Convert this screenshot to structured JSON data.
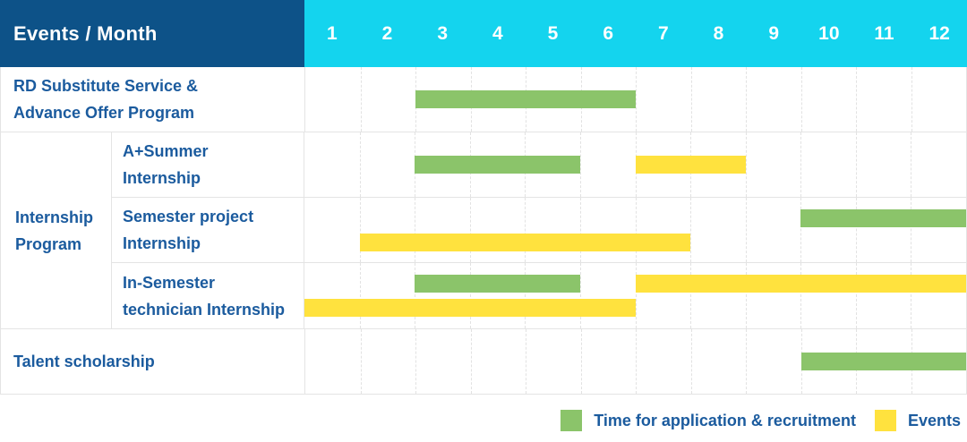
{
  "colors": {
    "header_bg": "#0D5288",
    "months_bg": "#14D4EE",
    "text_blue": "#1B5B9E",
    "green": "#8BC46A",
    "yellow": "#FFE23E",
    "grid_line": "#E4E4E4"
  },
  "header": {
    "title": "Events / Month",
    "months": [
      "1",
      "2",
      "3",
      "4",
      "5",
      "6",
      "7",
      "8",
      "9",
      "10",
      "11",
      "12"
    ]
  },
  "rows": [
    {
      "id": "rd-substitute",
      "label_lines": [
        "RD Substitute Service &",
        "Advance Offer Program"
      ],
      "bars": [
        {
          "color": "green",
          "start": 3,
          "end": 6,
          "line": "center"
        }
      ]
    },
    {
      "id": "a-summer-internship",
      "label_lines": [
        "A+Summer",
        "Internship"
      ],
      "bars": [
        {
          "color": "green",
          "start": 3,
          "end": 5,
          "line": "center"
        },
        {
          "color": "yellow",
          "start": 7,
          "end": 8,
          "line": "center"
        }
      ]
    },
    {
      "id": "semester-project-internship",
      "label_lines": [
        "Semester project",
        "Internship"
      ],
      "bars": [
        {
          "color": "green",
          "start": 10,
          "end": 12,
          "line": "top"
        },
        {
          "color": "yellow",
          "start": 2,
          "end": 7,
          "line": "bottom"
        }
      ]
    },
    {
      "id": "in-semester-technician-internship",
      "label_lines": [
        "In-Semester",
        "technician Internship"
      ],
      "bars": [
        {
          "color": "green",
          "start": 3,
          "end": 5,
          "line": "top"
        },
        {
          "color": "yellow",
          "start": 7,
          "end": 12,
          "line": "top"
        },
        {
          "color": "yellow",
          "start": 1,
          "end": 6,
          "line": "bottom"
        }
      ]
    },
    {
      "id": "talent-scholarship",
      "label_lines": [
        "Talent scholarship"
      ],
      "bars": [
        {
          "color": "green",
          "start": 10,
          "end": 12,
          "line": "center"
        }
      ]
    }
  ],
  "group": {
    "label_lines": [
      "Internship",
      "Program"
    ]
  },
  "legend": [
    {
      "color": "green",
      "label": "Time for application & recruitment"
    },
    {
      "color": "yellow",
      "label": "Events"
    }
  ],
  "chart_data": {
    "type": "gantt",
    "title": "Events / Month",
    "x": {
      "unit": "month",
      "ticks": [
        1,
        2,
        3,
        4,
        5,
        6,
        7,
        8,
        9,
        10,
        11,
        12
      ],
      "range": [
        1,
        12
      ]
    },
    "legend": [
      "Time for application & recruitment",
      "Events"
    ],
    "legend_position": "bottom-right",
    "grid": true,
    "tasks": [
      {
        "row": "RD Substitute Service & Advance Offer Program",
        "group": null,
        "spans": [
          {
            "series": "Time for application & recruitment",
            "start_month": 3,
            "end_month": 6
          }
        ]
      },
      {
        "row": "A+Summer Internship",
        "group": "Internship Program",
        "spans": [
          {
            "series": "Time for application & recruitment",
            "start_month": 3,
            "end_month": 5
          },
          {
            "series": "Events",
            "start_month": 7,
            "end_month": 8
          }
        ]
      },
      {
        "row": "Semester project Internship",
        "group": "Internship Program",
        "spans": [
          {
            "series": "Time for application & recruitment",
            "start_month": 10,
            "end_month": 12
          },
          {
            "series": "Events",
            "start_month": 2,
            "end_month": 7
          }
        ]
      },
      {
        "row": "In-Semester technician Internship",
        "group": "Internship Program",
        "spans": [
          {
            "series": "Time for application & recruitment",
            "start_month": 3,
            "end_month": 5
          },
          {
            "series": "Events",
            "start_month": 7,
            "end_month": 12
          },
          {
            "series": "Events",
            "start_month": 1,
            "end_month": 6
          }
        ]
      },
      {
        "row": "Talent scholarship",
        "group": null,
        "spans": [
          {
            "series": "Time for application & recruitment",
            "start_month": 10,
            "end_month": 12
          }
        ]
      }
    ]
  }
}
